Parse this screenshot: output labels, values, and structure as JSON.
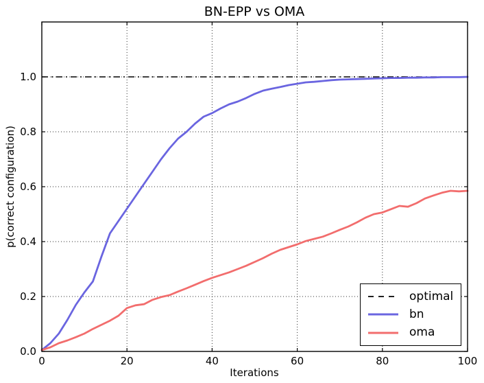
{
  "chart_data": {
    "type": "line",
    "title": "BN-EPP vs OMA",
    "xlabel": "Iterations",
    "ylabel": "p(correct configuration)",
    "xlim": [
      0,
      100
    ],
    "ylim": [
      0,
      1.2
    ],
    "x_ticks": [
      0,
      20,
      40,
      60,
      80,
      100
    ],
    "x_tick_labels": [
      "0",
      "20",
      "40",
      "60",
      "80",
      "100"
    ],
    "y_ticks": [
      0.0,
      0.2,
      0.4,
      0.6,
      0.8,
      1.0
    ],
    "y_tick_labels": [
      "0.0",
      "0.2",
      "0.4",
      "0.6",
      "0.8",
      "1.0"
    ],
    "grid": true,
    "grid_style": "dotted",
    "legend_position": "lower right",
    "x": [
      0,
      2,
      4,
      6,
      8,
      10,
      12,
      14,
      16,
      18,
      20,
      22,
      24,
      26,
      28,
      30,
      32,
      34,
      36,
      38,
      40,
      42,
      44,
      46,
      48,
      50,
      52,
      54,
      56,
      58,
      60,
      62,
      64,
      66,
      68,
      70,
      72,
      74,
      76,
      78,
      80,
      82,
      84,
      86,
      88,
      90,
      92,
      94,
      96,
      98,
      100
    ],
    "series": [
      {
        "name": "optimal",
        "type": "hline",
        "y": 1.0,
        "color": "#000000",
        "linestyle": "dashdot"
      },
      {
        "name": "bn",
        "type": "line",
        "color": "#6a65e0",
        "linestyle": "solid",
        "values": [
          0.005,
          0.03,
          0.065,
          0.115,
          0.17,
          0.215,
          0.255,
          0.345,
          0.43,
          0.475,
          0.52,
          0.565,
          0.61,
          0.655,
          0.7,
          0.74,
          0.775,
          0.8,
          0.83,
          0.855,
          0.868,
          0.885,
          0.9,
          0.91,
          0.923,
          0.938,
          0.95,
          0.957,
          0.963,
          0.97,
          0.975,
          0.98,
          0.982,
          0.985,
          0.988,
          0.99,
          0.991,
          0.992,
          0.993,
          0.994,
          0.995,
          0.996,
          0.996,
          0.997,
          0.997,
          0.998,
          0.998,
          0.999,
          0.999,
          0.999,
          1.0
        ]
      },
      {
        "name": "oma",
        "type": "line",
        "color": "#f26d6d",
        "linestyle": "solid",
        "values": [
          0.005,
          0.015,
          0.03,
          0.04,
          0.052,
          0.065,
          0.082,
          0.097,
          0.112,
          0.13,
          0.158,
          0.168,
          0.172,
          0.188,
          0.198,
          0.205,
          0.218,
          0.23,
          0.243,
          0.256,
          0.268,
          0.278,
          0.288,
          0.3,
          0.312,
          0.326,
          0.34,
          0.356,
          0.37,
          0.38,
          0.39,
          0.402,
          0.41,
          0.418,
          0.43,
          0.443,
          0.455,
          0.47,
          0.487,
          0.5,
          0.506,
          0.518,
          0.53,
          0.527,
          0.54,
          0.557,
          0.568,
          0.578,
          0.585,
          0.583,
          0.585
        ]
      }
    ]
  }
}
